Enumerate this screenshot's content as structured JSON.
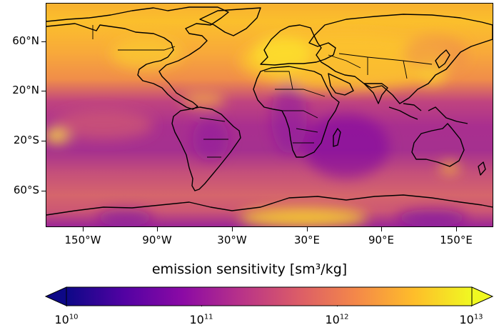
{
  "figure": {
    "colormap": "plasma",
    "colormap_stops": [
      "#0d0887",
      "#5302a3",
      "#8b0aa5",
      "#b83289",
      "#db5c68",
      "#f48849",
      "#febd2a",
      "#f0f921"
    ]
  },
  "map": {
    "projection": "PlateCarree",
    "x_ticks": [
      "150°W",
      "90°W",
      "30°W",
      "30°E",
      "90°E",
      "150°E"
    ],
    "y_ticks": [
      "60°N",
      "20°N",
      "20°S",
      "60°S"
    ]
  },
  "colorbar": {
    "label": "emission sensitivity [sm³/kg]",
    "scale": "log",
    "range": [
      10000000000.0,
      10000000000000.0
    ],
    "extend": "both",
    "tick_base": [
      "10",
      "10",
      "10",
      "10"
    ],
    "tick_exponents": [
      "10",
      "11",
      "12",
      "13"
    ]
  }
}
